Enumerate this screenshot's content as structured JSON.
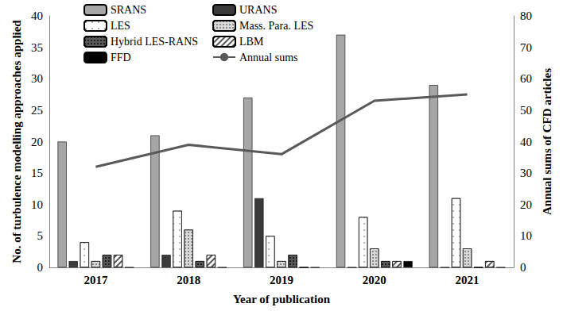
{
  "chart_data": {
    "type": "bar",
    "xlabel": "Year of publication",
    "ylabel": "No. of turbulence modelling approaches applied",
    "y2label": "Annual sums of CFD articles",
    "categories": [
      "2017",
      "2018",
      "2019",
      "2020",
      "2021"
    ],
    "ylim": [
      0,
      40
    ],
    "yticks": [
      0,
      5,
      10,
      15,
      20,
      25,
      30,
      35,
      40
    ],
    "y2lim": [
      0,
      80
    ],
    "y2ticks": [
      0,
      10,
      20,
      30,
      40,
      50,
      60,
      70,
      80
    ],
    "legend": "top left",
    "series": [
      {
        "name": "SRANS",
        "color": "#a6a6a6",
        "values": [
          20,
          21,
          27,
          37,
          29
        ]
      },
      {
        "name": "URANS",
        "color": "#3a3a3a",
        "values": [
          1,
          2,
          11,
          0,
          0
        ]
      },
      {
        "name": "LES",
        "color": "#ffffff",
        "values": [
          4,
          9,
          5,
          8,
          11
        ]
      },
      {
        "name": "Mass. Para. LES",
        "color": "#d9d9d9",
        "values": [
          1,
          6,
          1,
          3,
          3
        ]
      },
      {
        "name": "Hybrid LES-RANS",
        "color": "#595959",
        "values": [
          2,
          1,
          2,
          1,
          0
        ]
      },
      {
        "name": "LBM",
        "color": "#ffffff",
        "values": [
          2,
          2,
          0,
          1,
          1
        ]
      },
      {
        "name": "FFD",
        "color": "#000000",
        "values": [
          0,
          0,
          0,
          1,
          0
        ]
      },
      {
        "name": "Annual sums",
        "type": "line",
        "axis": "y2",
        "color": "#595959",
        "values": [
          32,
          39,
          36,
          53,
          55
        ]
      }
    ]
  }
}
